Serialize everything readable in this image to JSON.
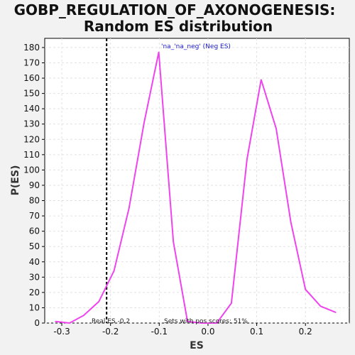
{
  "chart_data": {
    "type": "line",
    "title_line1": "GOBP_REGULATION_OF_AXONOGENESIS:",
    "title_line2": "Random ES distribution",
    "xlabel": "ES",
    "ylabel": "P(ES)",
    "xlim": [
      -0.335,
      0.29
    ],
    "ylim": [
      0,
      186
    ],
    "x_ticks": [
      -0.3,
      -0.2,
      -0.1,
      0.0,
      0.1,
      0.2
    ],
    "x_tick_labels": [
      "-0.3",
      "-0.2",
      "-0.1",
      "0.0",
      "0.1",
      "0.2"
    ],
    "y_ticks": [
      0,
      10,
      20,
      30,
      40,
      50,
      60,
      70,
      80,
      90,
      100,
      110,
      120,
      130,
      140,
      150,
      160,
      170,
      180
    ],
    "y_tick_labels": [
      "0",
      "10",
      "20",
      "30",
      "40",
      "50",
      "60",
      "70",
      "80",
      "90",
      "100",
      "110",
      "120",
      "130",
      "140",
      "150",
      "160",
      "170",
      "180"
    ],
    "grid": true,
    "series": [
      {
        "color": "#ee44ee",
        "x": [
          -0.313,
          -0.284,
          -0.255,
          -0.224,
          -0.193,
          -0.162,
          -0.131,
          -0.101,
          -0.071,
          -0.042,
          -0.012,
          0.018,
          0.048,
          0.08,
          0.109,
          0.14,
          0.17,
          0.2,
          0.231,
          0.262
        ],
        "y": [
          1,
          0,
          5,
          14,
          34,
          75,
          131,
          177,
          53,
          1,
          0,
          0,
          13,
          107,
          159,
          127,
          66,
          22,
          11,
          7
        ]
      }
    ],
    "real_es": -0.208,
    "annotations": {
      "real_es": "Real ES -0.2",
      "pos_scores": "Sets with pos scores: 51%",
      "neg_label": "'na_'na_neg' (Neg ES)"
    }
  }
}
